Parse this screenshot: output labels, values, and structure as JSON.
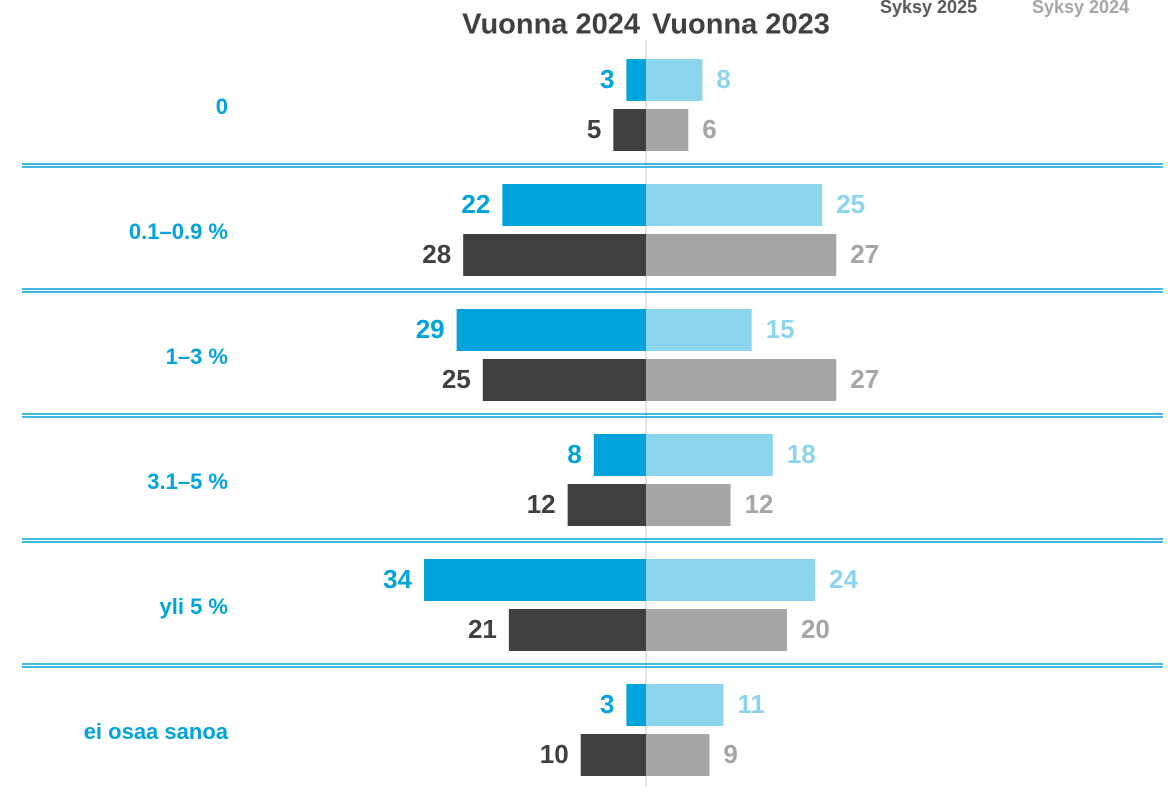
{
  "chart_data": {
    "type": "butterfly-bar",
    "categories": [
      "0",
      "0.1–0.9 %",
      "1–3 %",
      "3.1–5 %",
      "yli 5 %",
      "ei osaa sanoa"
    ],
    "legend": [
      {
        "name": "Syksy 2025",
        "color": "#595959"
      },
      {
        "name": "Syksy 2024",
        "color": "#a6a6a6"
      }
    ],
    "panels": [
      {
        "title": "Vuonna 2024",
        "side": "left",
        "xlim": [
          0,
          34
        ],
        "series": [
          {
            "color": "#00a3dc",
            "values": [
              3,
              22,
              29,
              8,
              34,
              3
            ]
          },
          {
            "color": "#404040",
            "values": [
              5,
              28,
              25,
              12,
              21,
              10
            ]
          }
        ]
      },
      {
        "title": "Vuonna 2023",
        "side": "right",
        "xlim": [
          0,
          31.5
        ],
        "series": [
          {
            "color": "#8dd5ee",
            "values": [
              8,
              25,
              15,
              18,
              24,
              11
            ]
          },
          {
            "color": "#a6a6a6",
            "values": [
              6,
              27,
              27,
              12,
              20,
              9
            ]
          }
        ]
      }
    ]
  }
}
